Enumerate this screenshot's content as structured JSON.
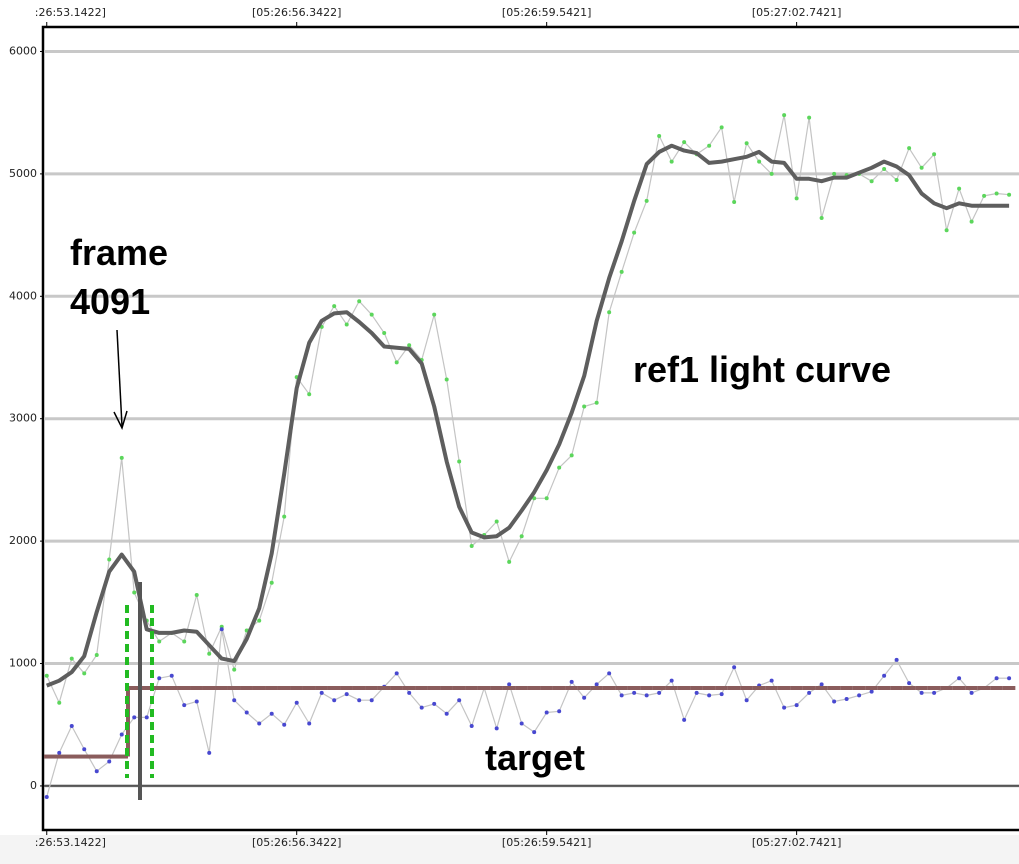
{
  "chart_data": {
    "type": "line",
    "annotations": [
      "frame",
      "4091",
      "ref1 light curve",
      "target"
    ],
    "x": [
      4085,
      4086,
      4087,
      4088,
      4089,
      4090,
      4091,
      4092,
      4093,
      4094,
      4095,
      4096,
      4097,
      4098,
      4099,
      4100,
      4101,
      4102,
      4103,
      4104,
      4105,
      4106,
      4107,
      4108,
      4109,
      4110,
      4111,
      4112,
      4113,
      4114,
      4115,
      4116,
      4117,
      4118,
      4119,
      4120,
      4121,
      4122,
      4123,
      4124,
      4125,
      4126,
      4127,
      4128,
      4129,
      4130,
      4131,
      4132,
      4133,
      4134,
      4135,
      4136,
      4137,
      4138,
      4139,
      4140,
      4141,
      4142,
      4143,
      4144,
      4145,
      4146,
      4147,
      4148,
      4149,
      4150,
      4151,
      4152,
      4153,
      4154,
      4155,
      4156,
      4157,
      4158,
      4159,
      4160,
      4161,
      4162
    ],
    "series": [
      {
        "style": "raw",
        "color": "#c4c4c4",
        "marker_color": "#5cd65c",
        "values": [
          900,
          680,
          1040,
          920,
          1070,
          1850,
          2680,
          1580,
          1350,
          1180,
          1250,
          1180,
          1560,
          1080,
          1300,
          950,
          1270,
          1350,
          1660,
          2200,
          3340,
          3200,
          3750,
          3920,
          3770,
          3960,
          3850,
          3700,
          3460,
          3600,
          3480,
          3850,
          3320,
          2650,
          1960,
          2050,
          2160,
          1830,
          2040,
          2350,
          2350,
          2600,
          2700,
          3100,
          3130,
          3870,
          4200,
          4520,
          4780,
          5310,
          5100,
          5260,
          5160,
          5230,
          5380,
          4770,
          5250,
          5100,
          5000,
          5480,
          4800,
          5460,
          4640,
          5000,
          4990,
          5000,
          4940,
          5040,
          4950,
          5210,
          5050,
          5160,
          4540,
          4880,
          4610,
          4820,
          4840,
          4830
        ]
      },
      {
        "style": "raw",
        "color": "#c4c4c4",
        "marker_color": "#4848d0",
        "values": [
          -90,
          270,
          490,
          300,
          120,
          200,
          420,
          560,
          560,
          880,
          900,
          660,
          690,
          270,
          1280,
          700,
          600,
          510,
          590,
          500,
          680,
          510,
          760,
          700,
          750,
          700,
          700,
          810,
          920,
          760,
          640,
          670,
          590,
          700,
          490,
          800,
          470,
          830,
          510,
          440,
          600,
          610,
          850,
          720,
          830,
          920,
          740,
          760,
          740,
          760,
          860,
          540,
          760,
          740,
          750,
          970,
          700,
          820,
          860,
          640,
          660,
          760,
          830,
          690,
          710,
          740,
          770,
          900,
          1030,
          840,
          760,
          760,
          800,
          880,
          760,
          800,
          880,
          880
        ]
      },
      {
        "style": "smooth",
        "color": "#5e5e5e",
        "values": [
          820,
          860,
          930,
          1060,
          1420,
          1750,
          1890,
          1750,
          1280,
          1250,
          1250,
          1270,
          1260,
          1150,
          1040,
          1020,
          1200,
          1450,
          1900,
          2550,
          3250,
          3620,
          3800,
          3860,
          3870,
          3790,
          3700,
          3590,
          3580,
          3570,
          3450,
          3100,
          2650,
          2280,
          2070,
          2030,
          2040,
          2110,
          2250,
          2400,
          2580,
          2790,
          3050,
          3350,
          3800,
          4150,
          4450,
          4780,
          5080,
          5180,
          5230,
          5190,
          5170,
          5090,
          5100,
          5120,
          5140,
          5180,
          5100,
          5090,
          4960,
          4960,
          4940,
          4970,
          4970,
          5010,
          5050,
          5100,
          5060,
          4990,
          4840,
          4760,
          4720,
          4760,
          4740,
          4740,
          4740,
          4740
        ]
      },
      {
        "style": "step",
        "color": "#8a5c5c",
        "values": [
          240,
          240,
          240,
          240,
          240,
          240,
          240,
          800,
          800,
          800,
          800,
          800,
          800,
          800,
          800,
          800,
          800,
          800,
          800,
          800,
          800,
          800,
          800,
          800,
          800,
          800,
          800,
          800,
          800,
          800,
          800,
          800,
          800,
          800,
          800,
          800,
          800,
          800,
          800,
          800,
          800,
          800,
          800,
          800,
          800,
          800,
          800,
          800,
          800,
          800,
          800,
          800,
          800,
          800,
          800,
          800,
          800,
          800,
          800,
          800,
          800,
          800,
          800,
          800,
          800,
          800,
          800,
          800,
          800,
          800,
          800,
          800,
          800,
          800,
          800,
          800,
          800,
          800
        ]
      }
    ],
    "xlim": [
      4084.7,
      4162.8
    ],
    "xticks": [
      {
        "value": 4085,
        "label": ":26:53.1422]"
      },
      {
        "value": 4105,
        "label": "[05:26:56.3422]"
      },
      {
        "value": 4125,
        "label": "[05:26:59.5421]"
      },
      {
        "value": 4145,
        "label": "[05:27:02.7421]"
      }
    ],
    "ylim": [
      -360,
      6200
    ],
    "yticks": [
      0,
      1000,
      2000,
      3000,
      4000,
      5000,
      6000
    ],
    "grid": true,
    "grid_color": "#c8c8c8"
  }
}
